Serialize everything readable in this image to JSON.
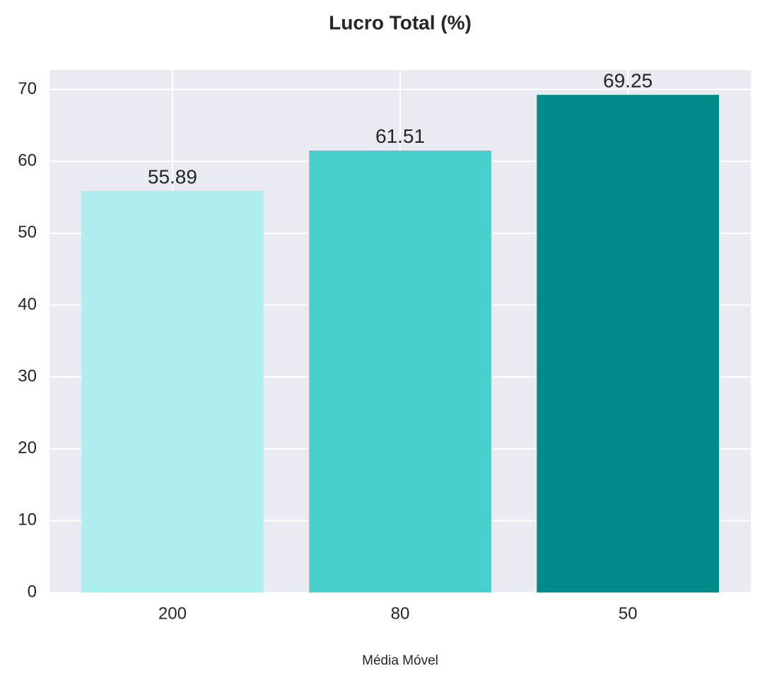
{
  "chart_data": {
    "type": "bar",
    "title": "Lucro Total (%)",
    "x_label": "Média Móvel",
    "categories": [
      "200",
      "80",
      "50"
    ],
    "values": [
      55.89,
      61.51,
      69.25
    ],
    "colors": [
      "#afeeee",
      "#48d1cc",
      "#008b8b"
    ],
    "ylim": [
      0,
      72.71
    ],
    "yticks": [
      0,
      10,
      20,
      30,
      40,
      50,
      60,
      70
    ],
    "grid": true
  }
}
